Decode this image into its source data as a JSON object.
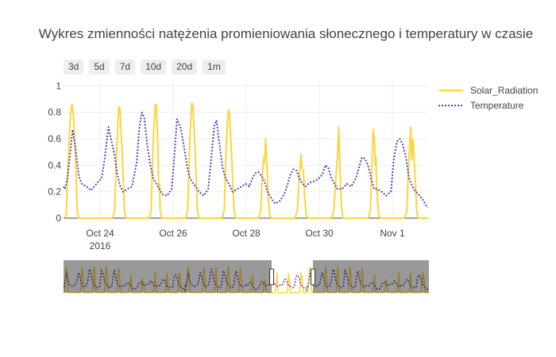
{
  "chart_data": {
    "type": "line",
    "title": "Wykres zmienności natężenia promieniowania słonecznego i temperatury w czasie",
    "range_buttons": [
      "3d",
      "5d",
      "7d",
      "10d",
      "20d",
      "1m"
    ],
    "x_start": "2016-10-23",
    "x_end": "2016-11-02",
    "x_ticks": [
      {
        "x": "2016-10-24",
        "label": "Oct 24",
        "sublabel": "2016"
      },
      {
        "x": "2016-10-26",
        "label": "Oct 26",
        "sublabel": ""
      },
      {
        "x": "2016-10-28",
        "label": "Oct 28",
        "sublabel": ""
      },
      {
        "x": "2016-10-30",
        "label": "Oct 30",
        "sublabel": ""
      },
      {
        "x": "2016-11-01",
        "label": "Nov 1",
        "sublabel": ""
      }
    ],
    "ylim": [
      0,
      1.05
    ],
    "y_ticks": [
      0,
      0.2,
      0.4,
      0.6,
      0.8,
      1
    ],
    "grid": true,
    "legend_position": "top-right",
    "rangeslider": true,
    "series": [
      {
        "name": "Solar_Radiation",
        "color": "#FFD43B",
        "style": "solid",
        "points": [
          [
            "2016-10-23 00:00",
            0
          ],
          [
            "2016-10-23 01:45",
            0.02
          ],
          [
            "2016-10-23 03:00",
            0.42
          ],
          [
            "2016-10-23 04:30",
            0.77
          ],
          [
            "2016-10-23 05:30",
            0.86
          ],
          [
            "2016-10-23 06:30",
            0.78
          ],
          [
            "2016-10-23 08:00",
            0.42
          ],
          [
            "2016-10-23 09:00",
            0.05
          ],
          [
            "2016-10-23 10:00",
            0
          ],
          [
            "2016-10-24 08:00",
            0
          ],
          [
            "2016-10-24 09:30",
            0.05
          ],
          [
            "2016-10-24 11:00",
            0.55
          ],
          [
            "2016-10-24 12:15",
            0.84
          ],
          [
            "2016-10-24 13:00",
            0.84
          ],
          [
            "2016-10-24 14:30",
            0.5
          ],
          [
            "2016-10-24 16:00",
            0.05
          ],
          [
            "2016-10-24 17:00",
            0
          ],
          [
            "2016-10-25 08:00",
            0
          ],
          [
            "2016-10-25 09:30",
            0.05
          ],
          [
            "2016-10-25 11:00",
            0.62
          ],
          [
            "2016-10-25 12:15",
            0.86
          ],
          [
            "2016-10-25 13:00",
            0.85
          ],
          [
            "2016-10-25 14:00",
            0.55
          ],
          [
            "2016-10-25 14:30",
            0.22
          ],
          [
            "2016-10-25 15:00",
            0.26
          ],
          [
            "2016-10-25 15:30",
            0.06
          ],
          [
            "2016-10-25 16:30",
            0
          ],
          [
            "2016-10-26 08:00",
            0
          ],
          [
            "2016-10-26 09:30",
            0.05
          ],
          [
            "2016-10-26 11:00",
            0.62
          ],
          [
            "2016-10-26 12:15",
            0.87
          ],
          [
            "2016-10-26 13:00",
            0.85
          ],
          [
            "2016-10-26 14:30",
            0.5
          ],
          [
            "2016-10-26 16:00",
            0.05
          ],
          [
            "2016-10-26 17:00",
            0
          ],
          [
            "2016-10-27 08:00",
            0
          ],
          [
            "2016-10-27 09:30",
            0.05
          ],
          [
            "2016-10-27 11:00",
            0.6
          ],
          [
            "2016-10-27 12:15",
            0.82
          ],
          [
            "2016-10-27 13:00",
            0.79
          ],
          [
            "2016-10-27 14:30",
            0.45
          ],
          [
            "2016-10-27 16:00",
            0.05
          ],
          [
            "2016-10-27 17:00",
            0
          ],
          [
            "2016-10-28 08:00",
            0
          ],
          [
            "2016-10-28 09:30",
            0.05
          ],
          [
            "2016-10-28 10:30",
            0.3
          ],
          [
            "2016-10-28 11:30",
            0.46
          ],
          [
            "2016-10-28 12:00",
            0.42
          ],
          [
            "2016-10-28 12:45",
            0.6
          ],
          [
            "2016-10-28 13:30",
            0.43
          ],
          [
            "2016-10-28 14:30",
            0.15
          ],
          [
            "2016-10-28 15:30",
            0.02
          ],
          [
            "2016-10-28 16:30",
            0
          ],
          [
            "2016-10-29 08:00",
            0
          ],
          [
            "2016-10-29 09:30",
            0.05
          ],
          [
            "2016-10-29 11:00",
            0.35
          ],
          [
            "2016-10-29 12:00",
            0.48
          ],
          [
            "2016-10-29 12:30",
            0.38
          ],
          [
            "2016-10-29 13:30",
            0.36
          ],
          [
            "2016-10-29 14:30",
            0.15
          ],
          [
            "2016-10-29 15:30",
            0.02
          ],
          [
            "2016-10-29 16:30",
            0
          ],
          [
            "2016-10-30 08:00",
            0
          ],
          [
            "2016-10-30 09:30",
            0.05
          ],
          [
            "2016-10-30 11:00",
            0.32
          ],
          [
            "2016-10-30 12:00",
            0.48
          ],
          [
            "2016-10-30 12:45",
            0.69
          ],
          [
            "2016-10-30 13:30",
            0.4
          ],
          [
            "2016-10-30 14:30",
            0.1
          ],
          [
            "2016-10-30 15:30",
            0
          ],
          [
            "2016-10-31 08:00",
            0
          ],
          [
            "2016-10-31 09:30",
            0.05
          ],
          [
            "2016-10-31 10:30",
            0.4
          ],
          [
            "2016-10-31 11:30",
            0.67
          ],
          [
            "2016-10-31 12:15",
            0.58
          ],
          [
            "2016-10-31 12:45",
            0.4
          ],
          [
            "2016-10-31 13:15",
            0.46
          ],
          [
            "2016-10-31 13:45",
            0.22
          ],
          [
            "2016-10-31 15:00",
            0.02
          ],
          [
            "2016-10-31 16:00",
            0
          ],
          [
            "2016-11-01 08:00",
            0
          ],
          [
            "2016-11-01 09:30",
            0.05
          ],
          [
            "2016-11-01 10:30",
            0.35
          ],
          [
            "2016-11-01 11:30",
            0.58
          ],
          [
            "2016-11-01 12:00",
            0.69
          ],
          [
            "2016-11-01 12:45",
            0.44
          ],
          [
            "2016-11-01 13:30",
            0.6
          ],
          [
            "2016-11-01 15:00",
            0.3
          ],
          [
            "2016-11-01 16:00",
            0.05
          ],
          [
            "2016-11-01 17:00",
            0
          ],
          [
            "2016-11-02 00:00",
            0
          ]
        ]
      },
      {
        "name": "Temperature",
        "color": "#5544BB",
        "style": "dot",
        "points": [
          [
            "2016-10-23 00:00",
            0.24
          ],
          [
            "2016-10-23 01:00",
            0.22
          ],
          [
            "2016-10-23 02:30",
            0.3
          ],
          [
            "2016-10-23 04:00",
            0.45
          ],
          [
            "2016-10-23 06:00",
            0.67
          ],
          [
            "2016-10-23 08:00",
            0.52
          ],
          [
            "2016-10-23 10:00",
            0.32
          ],
          [
            "2016-10-23 12:00",
            0.26
          ],
          [
            "2016-10-23 15:00",
            0.24
          ],
          [
            "2016-10-23 18:00",
            0.21
          ],
          [
            "2016-10-23 21:00",
            0.25
          ],
          [
            "2016-10-23 23:00",
            0.28
          ],
          [
            "2016-10-24 01:00",
            0.3
          ],
          [
            "2016-10-24 03:00",
            0.45
          ],
          [
            "2016-10-24 05:30",
            0.69
          ],
          [
            "2016-10-24 07:30",
            0.58
          ],
          [
            "2016-10-24 09:30",
            0.48
          ],
          [
            "2016-10-24 11:00",
            0.35
          ],
          [
            "2016-10-24 13:00",
            0.25
          ],
          [
            "2016-10-24 15:00",
            0.2
          ],
          [
            "2016-10-24 18:00",
            0.22
          ],
          [
            "2016-10-24 21:00",
            0.24
          ],
          [
            "2016-10-25 00:00",
            0.42
          ],
          [
            "2016-10-25 02:00",
            0.7
          ],
          [
            "2016-10-25 03:30",
            0.8
          ],
          [
            "2016-10-25 05:00",
            0.76
          ],
          [
            "2016-10-25 07:00",
            0.55
          ],
          [
            "2016-10-25 09:00",
            0.4
          ],
          [
            "2016-10-25 11:00",
            0.3
          ],
          [
            "2016-10-25 14:00",
            0.24
          ],
          [
            "2016-10-25 17:00",
            0.18
          ],
          [
            "2016-10-25 20:00",
            0.17
          ],
          [
            "2016-10-25 23:00",
            0.22
          ],
          [
            "2016-10-26 01:00",
            0.5
          ],
          [
            "2016-10-26 02:30",
            0.75
          ],
          [
            "2016-10-26 05:00",
            0.68
          ],
          [
            "2016-10-26 07:00",
            0.55
          ],
          [
            "2016-10-26 09:00",
            0.4
          ],
          [
            "2016-10-26 11:00",
            0.3
          ],
          [
            "2016-10-26 14:00",
            0.25
          ],
          [
            "2016-10-26 17:00",
            0.2
          ],
          [
            "2016-10-26 20:00",
            0.17
          ],
          [
            "2016-10-26 23:00",
            0.22
          ],
          [
            "2016-10-27 01:00",
            0.45
          ],
          [
            "2016-10-27 03:00",
            0.7
          ],
          [
            "2016-10-27 04:30",
            0.74
          ],
          [
            "2016-10-27 06:30",
            0.55
          ],
          [
            "2016-10-27 08:30",
            0.38
          ],
          [
            "2016-10-27 10:30",
            0.3
          ],
          [
            "2016-10-27 13:00",
            0.25
          ],
          [
            "2016-10-27 15:00",
            0.2
          ],
          [
            "2016-10-27 18:00",
            0.22
          ],
          [
            "2016-10-27 21:00",
            0.24
          ],
          [
            "2016-10-27 23:30",
            0.26
          ],
          [
            "2016-10-28 02:00",
            0.24
          ],
          [
            "2016-10-28 04:00",
            0.3
          ],
          [
            "2016-10-28 06:00",
            0.34
          ],
          [
            "2016-10-28 08:00",
            0.35
          ],
          [
            "2016-10-28 10:00",
            0.32
          ],
          [
            "2016-10-28 12:00",
            0.28
          ],
          [
            "2016-10-28 14:00",
            0.2
          ],
          [
            "2016-10-28 17:00",
            0.14
          ],
          [
            "2016-10-28 19:00",
            0.11
          ],
          [
            "2016-10-28 22:00",
            0.13
          ],
          [
            "2016-10-29 01:00",
            0.18
          ],
          [
            "2016-10-29 03:00",
            0.25
          ],
          [
            "2016-10-29 05:00",
            0.33
          ],
          [
            "2016-10-29 07:00",
            0.37
          ],
          [
            "2016-10-29 09:00",
            0.36
          ],
          [
            "2016-10-29 11:00",
            0.3
          ],
          [
            "2016-10-29 13:00",
            0.26
          ],
          [
            "2016-10-29 15:00",
            0.24
          ],
          [
            "2016-10-29 18:00",
            0.27
          ],
          [
            "2016-10-29 21:00",
            0.28
          ],
          [
            "2016-10-29 23:30",
            0.3
          ],
          [
            "2016-10-30 02:00",
            0.33
          ],
          [
            "2016-10-30 04:00",
            0.4
          ],
          [
            "2016-10-30 06:00",
            0.38
          ],
          [
            "2016-10-30 08:00",
            0.3
          ],
          [
            "2016-10-30 10:00",
            0.26
          ],
          [
            "2016-10-30 12:00",
            0.22
          ],
          [
            "2016-10-30 15:00",
            0.22
          ],
          [
            "2016-10-30 18:00",
            0.26
          ],
          [
            "2016-10-30 21:00",
            0.24
          ],
          [
            "2016-10-31 00:00",
            0.3
          ],
          [
            "2016-10-31 02:00",
            0.38
          ],
          [
            "2016-10-31 04:00",
            0.46
          ],
          [
            "2016-10-31 06:00",
            0.45
          ],
          [
            "2016-10-31 08:00",
            0.4
          ],
          [
            "2016-10-31 10:00",
            0.3
          ],
          [
            "2016-10-31 12:00",
            0.22
          ],
          [
            "2016-10-31 14:00",
            0.22
          ],
          [
            "2016-10-31 17:00",
            0.2
          ],
          [
            "2016-10-31 20:00",
            0.17
          ],
          [
            "2016-10-31 23:00",
            0.2
          ],
          [
            "2016-11-01 01:00",
            0.45
          ],
          [
            "2016-11-01 03:00",
            0.58
          ],
          [
            "2016-11-01 05:00",
            0.6
          ],
          [
            "2016-11-01 07:00",
            0.55
          ],
          [
            "2016-11-01 09:00",
            0.45
          ],
          [
            "2016-11-01 11:00",
            0.3
          ],
          [
            "2016-11-01 14:00",
            0.22
          ],
          [
            "2016-11-01 17:00",
            0.18
          ],
          [
            "2016-11-01 20:00",
            0.14
          ],
          [
            "2016-11-01 23:00",
            0.08
          ]
        ]
      }
    ]
  }
}
